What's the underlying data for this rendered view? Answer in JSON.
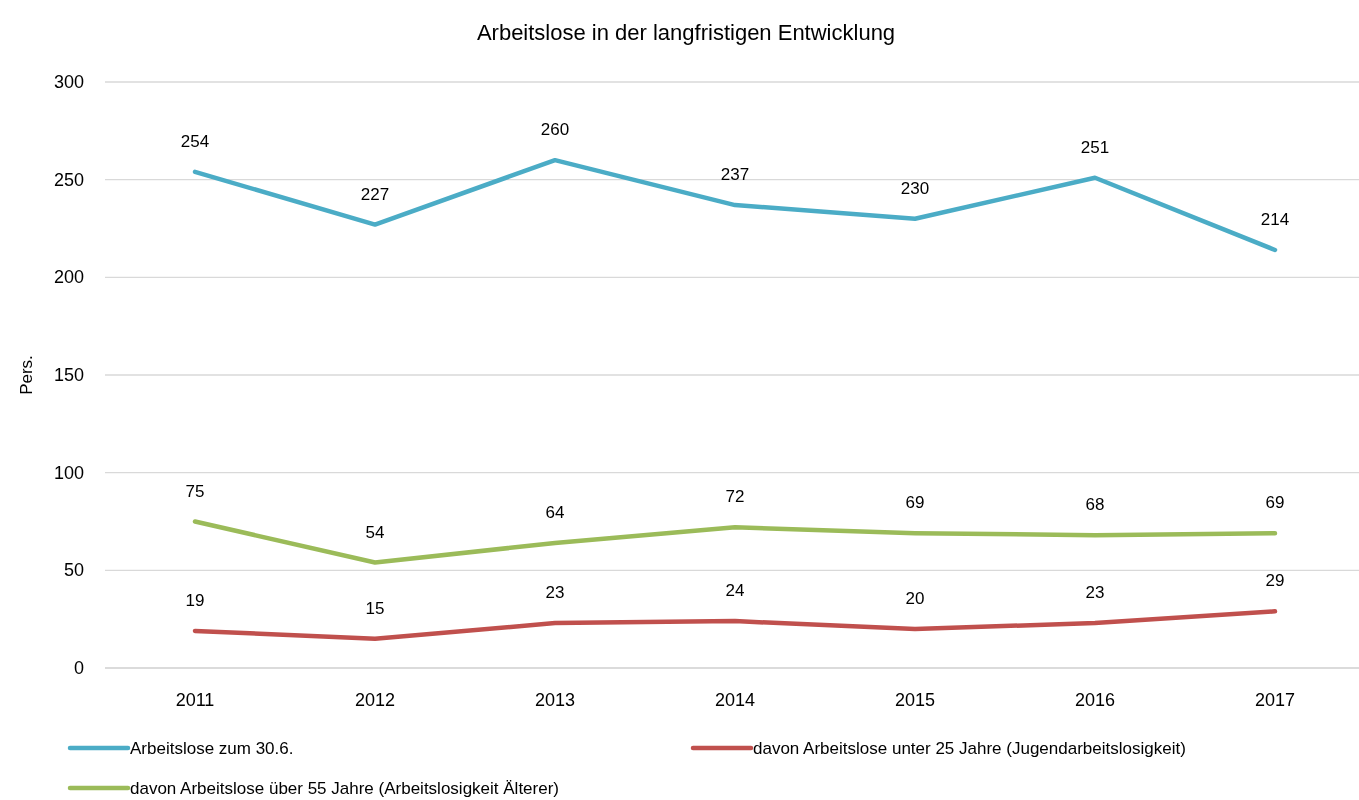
{
  "chart_data": {
    "type": "line",
    "title": "Arbeitslose in der langfristigen Entwicklung",
    "ylabel": "Pers.",
    "categories": [
      "2011",
      "2012",
      "2013",
      "2014",
      "2015",
      "2016",
      "2017"
    ],
    "series": [
      {
        "name": "Arbeitslose zum 30.6.",
        "color": "#4bacc6",
        "values": [
          254,
          227,
          260,
          237,
          230,
          251,
          214
        ]
      },
      {
        "name": "davon Arbeitslose unter 25 Jahre (Jugendarbeitslosigkeit)",
        "color": "#c0504d",
        "values": [
          19,
          15,
          23,
          24,
          20,
          23,
          29
        ]
      },
      {
        "name": "davon Arbeitslose über 55 Jahre (Arbeitslosigkeit Älterer)",
        "color": "#9bbb59",
        "values": [
          75,
          54,
          64,
          72,
          69,
          68,
          69
        ]
      }
    ],
    "ylim": [
      0,
      300
    ],
    "yticks": [
      0,
      50,
      100,
      150,
      200,
      250,
      300
    ],
    "grid": "y",
    "legend": "bottom",
    "data_labels": true,
    "marker": "none",
    "line_style": "solid"
  }
}
